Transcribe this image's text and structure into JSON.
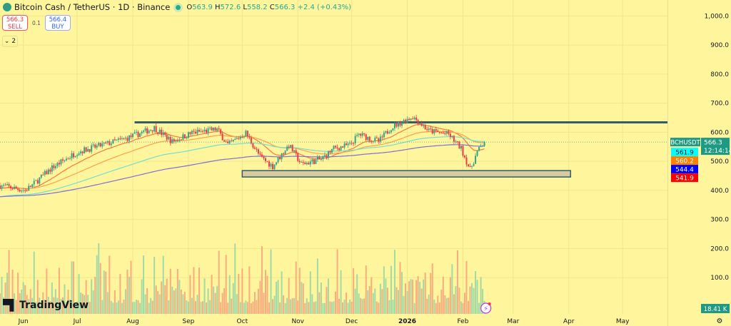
{
  "header": {
    "title": "Bitcoin Cash / TetherUS · 1D · Binance",
    "ohlc": {
      "o_label": "O",
      "o": "563.9",
      "h_label": "H",
      "h": "572.6",
      "l_label": "L",
      "l": "558.2",
      "c_label": "C",
      "c": "566.3",
      "change": "+2.4 (+0.43%)"
    }
  },
  "trade": {
    "sell_price": "566.3",
    "sell_label": "SELL",
    "spread": "0.1",
    "buy_price": "566.4",
    "buy_label": "BUY"
  },
  "indicators_toggle": "⌄ 2",
  "branding": "TradingView",
  "colors": {
    "background": "#fff59d",
    "up": "#2fa58a",
    "down": "#f23645",
    "ma_fast": "#f57c3a",
    "ma_mid": "#ffa04d",
    "ma_slow": "#6fe0d0",
    "ma_long": "#7c6fd6",
    "line": "#2f5d68",
    "zone": "#d8cba0"
  },
  "chart_data": {
    "type": "candlestick",
    "symbol_label": "BCHUSDT",
    "last_price": "566.3",
    "countdown": "12:14:14",
    "ma_labels": [
      {
        "value": "561.9",
        "color": "#00ffff",
        "text_color": "#131722"
      },
      {
        "value": "560.2",
        "color": "#ff7f00",
        "text_color": "#ffffff"
      },
      {
        "value": "544.4",
        "color": "#0000ff",
        "text_color": "#ffffff"
      },
      {
        "value": "541.9",
        "color": "#ff0000",
        "text_color": "#ffffff"
      }
    ],
    "volume_label": "18.41 K",
    "y_ticks": [
      "1,000.0",
      "900.0",
      "800.0",
      "700.0",
      "600.0",
      "500.0",
      "400.0",
      "300.0",
      "200.0",
      "100.0"
    ],
    "y_tick_values": [
      1000,
      900,
      800,
      700,
      600,
      500,
      400,
      300,
      200,
      100
    ],
    "x_ticks": [
      "Jun",
      "Jul",
      "Aug",
      "Sep",
      "Oct",
      "Nov",
      "Dec",
      "2026",
      "Feb",
      "Mar",
      "Apr",
      "May"
    ],
    "x_tick_dates": [
      "2025-06-01",
      "2025-07-01",
      "2025-08-01",
      "2025-09-01",
      "2025-10-01",
      "2025-11-01",
      "2025-12-01",
      "2026-01-01",
      "2026-02-01",
      "2026-03-01",
      "2026-04-01",
      "2026-05-01"
    ],
    "x_range": [
      "2025-05-19",
      "2026-05-26"
    ],
    "y_range": [
      -25,
      1055
    ],
    "closes": [
      {
        "date": "2025-05-19",
        "close": 417
      },
      {
        "date": "2025-06-02",
        "close": 400
      },
      {
        "date": "2025-06-06",
        "close": 418
      },
      {
        "date": "2025-06-17",
        "close": 478
      },
      {
        "date": "2025-07-01",
        "close": 532
      },
      {
        "date": "2025-07-15",
        "close": 556
      },
      {
        "date": "2025-07-29",
        "close": 580
      },
      {
        "date": "2025-08-13",
        "close": 615
      },
      {
        "date": "2025-08-23",
        "close": 568
      },
      {
        "date": "2025-09-03",
        "close": 598
      },
      {
        "date": "2025-09-17",
        "close": 610
      },
      {
        "date": "2025-09-23",
        "close": 556
      },
      {
        "date": "2025-10-03",
        "close": 598
      },
      {
        "date": "2025-10-11",
        "close": 515
      },
      {
        "date": "2025-10-18",
        "close": 483
      },
      {
        "date": "2025-10-27",
        "close": 556
      },
      {
        "date": "2025-11-03",
        "close": 490
      },
      {
        "date": "2025-11-14",
        "close": 507
      },
      {
        "date": "2025-11-21",
        "close": 544
      },
      {
        "date": "2025-11-30",
        "close": 556
      },
      {
        "date": "2025-12-05",
        "close": 593
      },
      {
        "date": "2025-12-16",
        "close": 568
      },
      {
        "date": "2025-12-23",
        "close": 617
      },
      {
        "date": "2026-01-04",
        "close": 654
      },
      {
        "date": "2026-01-13",
        "close": 605
      },
      {
        "date": "2026-01-24",
        "close": 593
      },
      {
        "date": "2026-01-31",
        "close": 544
      },
      {
        "date": "2026-02-05",
        "close": 471
      },
      {
        "date": "2026-02-09",
        "close": 532
      },
      {
        "date": "2026-02-13",
        "close": 566.3
      }
    ],
    "resistance_line": {
      "price": 634,
      "from": "2025-08-02",
      "to": "2026-05-26"
    },
    "support_zone": {
      "low": 446,
      "high": 468,
      "from": "2025-10-01",
      "to": "2026-04-02"
    },
    "grid": true
  }
}
